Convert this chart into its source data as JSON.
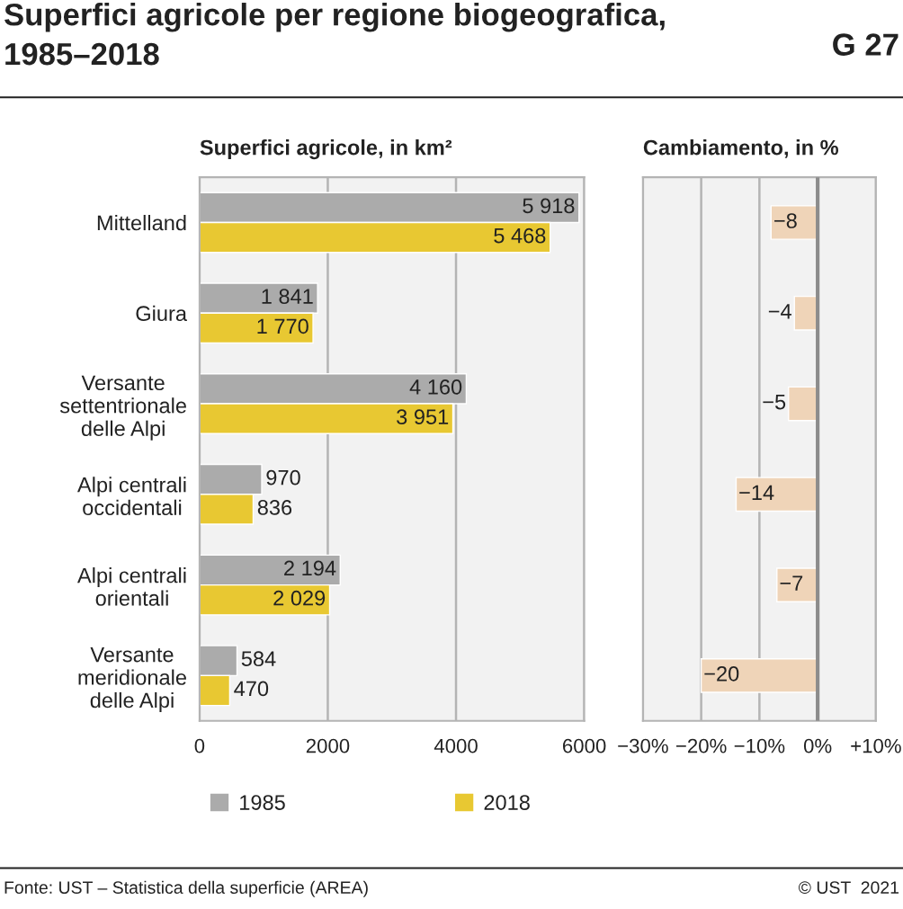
{
  "chart_data": [
    {
      "type": "bar",
      "orientation": "horizontal",
      "title": "Superfici agricole per regione biogeografica,\n1985–2018",
      "xlabel": "Superfici agricole, in km²",
      "annotations": [
        "G 27",
        "Fonte: UST – Statistica della superficie (AREA)",
        "© UST  2021"
      ],
      "categories": [
        "Mittelland",
        "Giura",
        "Versante\nsettentrionale\ndelle Alpi",
        "Alpi centrali\noccidentali",
        "Alpi centrali\norientali",
        "Versante\nmeridionale\ndelle Alpi"
      ],
      "series": [
        {
          "name": "1985",
          "color": "#ababab",
          "values": [
            5918,
            1841,
            4160,
            970,
            2194,
            584
          ],
          "value_labels": [
            "5 918",
            "1 841",
            "4 160",
            "970",
            "2 194",
            "584"
          ]
        },
        {
          "name": "2018",
          "color": "#e8c832",
          "values": [
            5468,
            1770,
            3951,
            836,
            2029,
            470
          ],
          "value_labels": [
            "5 468",
            "1 770",
            "3 951",
            "836",
            "2 029",
            "470"
          ]
        }
      ],
      "xlim": [
        0,
        6000
      ],
      "xticks": [
        0,
        2000,
        4000,
        6000
      ],
      "grid": "x",
      "legend": "bottom"
    },
    {
      "type": "bar",
      "orientation": "horizontal",
      "xlabel": "Cambiamento, in %",
      "categories": [
        null,
        null,
        null,
        null,
        null,
        null
      ],
      "values": [
        -8,
        -4,
        -5,
        -14,
        -7,
        -20
      ],
      "color": "#efd4b8",
      "value_labels": [
        "−8",
        "−4",
        "−5",
        "−14",
        "−7",
        "−20"
      ],
      "xlim": [
        -30,
        10
      ],
      "xticks": [
        {
          "value": -30,
          "label": "−30%"
        },
        {
          "value": -20,
          "label": "−20%"
        },
        {
          "value": -10,
          "label": "−10%"
        },
        {
          "value": 0,
          "label": "0%"
        },
        {
          "value": 10,
          "label": "+10%"
        }
      ],
      "grid": "x",
      "tick_labels": "x",
      "ref_lines": [
        {
          "axis": "x",
          "value": 0,
          "color": "#8c8c8c"
        }
      ]
    }
  ]
}
